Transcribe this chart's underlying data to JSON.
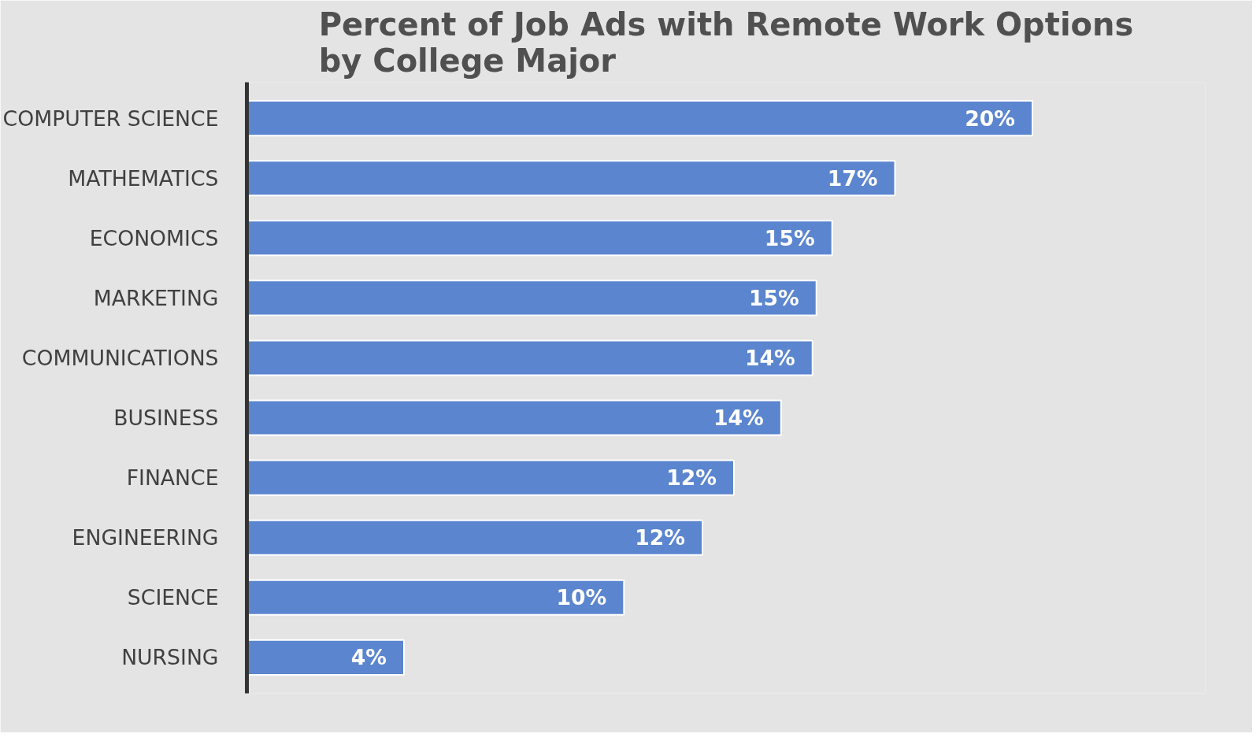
{
  "chart_data": {
    "type": "bar",
    "orientation": "horizontal",
    "title": "Percent of Job Ads with Remote Work Options\nby College Major",
    "categories": [
      "COMPUTER SCIENCE",
      "MATHEMATICS",
      "ECONOMICS",
      "MARKETING",
      "COMMUNICATIONS",
      "BUSINESS",
      "FINANCE",
      "ENGINEERING",
      "SCIENCE",
      "NURSING"
    ],
    "values": [
      20.0,
      16.5,
      14.9,
      14.5,
      14.4,
      13.6,
      12.4,
      11.6,
      9.6,
      4.0
    ],
    "value_labels": [
      "20%",
      "17%",
      "15%",
      "15%",
      "14%",
      "14%",
      "12%",
      "12%",
      "10%",
      "4%"
    ],
    "color": "#5b85cf"
  }
}
